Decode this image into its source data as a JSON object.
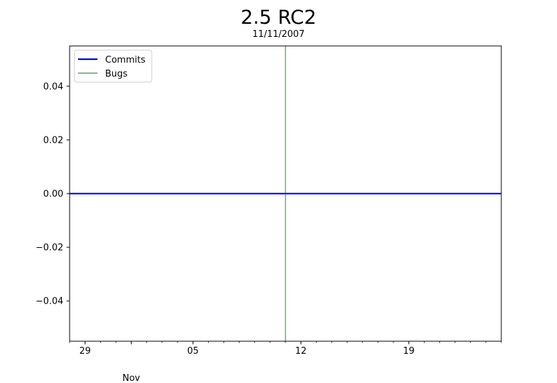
{
  "chart_data": {
    "type": "line",
    "title": "2.5 RC2",
    "subtitle": "11/11/2007",
    "xlabel": "",
    "ylabel": "",
    "x_axis_type": "date",
    "xlim": [
      "2007-10-28",
      "2007-11-25"
    ],
    "ylim": [
      -0.055,
      0.055
    ],
    "x_major_ticks": [
      {
        "date": "2007-10-29",
        "label": "29"
      },
      {
        "date": "2007-11-05",
        "label": "05"
      },
      {
        "date": "2007-11-12",
        "label": "12"
      },
      {
        "date": "2007-11-19",
        "label": "19"
      }
    ],
    "x_month_label": {
      "date": "2007-11-01",
      "label": "Nov"
    },
    "y_ticks": [
      {
        "value": 0.04,
        "label": "0.04"
      },
      {
        "value": 0.02,
        "label": "0.02"
      },
      {
        "value": 0.0,
        "label": "0.00"
      },
      {
        "value": -0.02,
        "label": "−0.02"
      },
      {
        "value": -0.04,
        "label": "−0.04"
      }
    ],
    "grid": false,
    "legend_position": "top-left",
    "series": [
      {
        "name": "Commits",
        "color": "#0000ff",
        "kind": "line",
        "x": [
          "2007-10-28",
          "2007-11-25"
        ],
        "values": [
          0,
          0
        ]
      },
      {
        "name": "Bugs",
        "color": "#008000",
        "kind": "vline",
        "x": [
          "2007-11-11"
        ]
      }
    ]
  }
}
